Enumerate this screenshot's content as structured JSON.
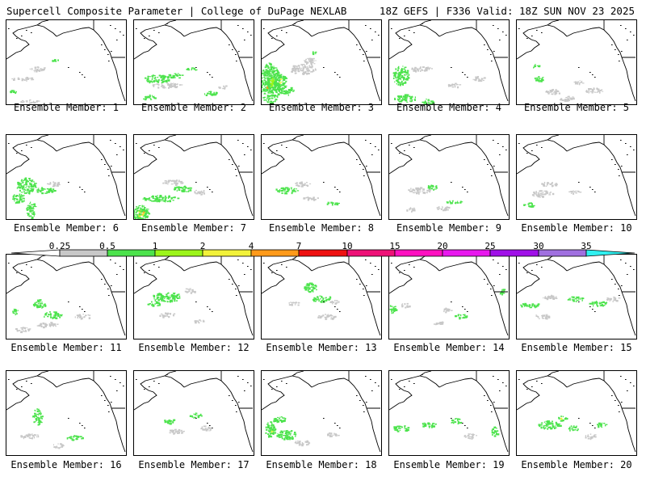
{
  "header": {
    "left_title": "Supercell Composite Parameter | College of DuPage NEXLAB",
    "right_title": "18Z GEFS | F336 Valid: 18Z SUN NOV 23 2025"
  },
  "colorbar": {
    "labels": [
      "0.25",
      "0.5",
      "1",
      "2",
      "4",
      "7",
      "10",
      "15",
      "20",
      "25",
      "30",
      "35"
    ],
    "colors": [
      "#c8c8c8",
      "#4ce34c",
      "#9cf51a",
      "#f2f23a",
      "#ff9a1a",
      "#ee1111",
      "#ee1177",
      "#ff10c0",
      "#e818ee",
      "#a010e8",
      "#a070e0",
      "#30f0f0"
    ],
    "low_color": "#ffffff"
  },
  "members": [
    {
      "label": "Ensemble Member: 1"
    },
    {
      "label": "Ensemble Member: 2"
    },
    {
      "label": "Ensemble Member: 3"
    },
    {
      "label": "Ensemble Member: 4"
    },
    {
      "label": "Ensemble Member: 5"
    },
    {
      "label": "Ensemble Member: 6"
    },
    {
      "label": "Ensemble Member: 7"
    },
    {
      "label": "Ensemble Member: 8"
    },
    {
      "label": "Ensemble Member: 9"
    },
    {
      "label": "Ensemble Member: 10"
    },
    {
      "label": "Ensemble Member: 11"
    },
    {
      "label": "Ensemble Member: 12"
    },
    {
      "label": "Ensemble Member: 13"
    },
    {
      "label": "Ensemble Member: 14"
    },
    {
      "label": "Ensemble Member: 15"
    },
    {
      "label": "Ensemble Member: 16"
    },
    {
      "label": "Ensemble Member: 17"
    },
    {
      "label": "Ensemble Member: 18"
    },
    {
      "label": "Ensemble Member: 19"
    },
    {
      "label": "Ensemble Member: 20"
    }
  ]
}
